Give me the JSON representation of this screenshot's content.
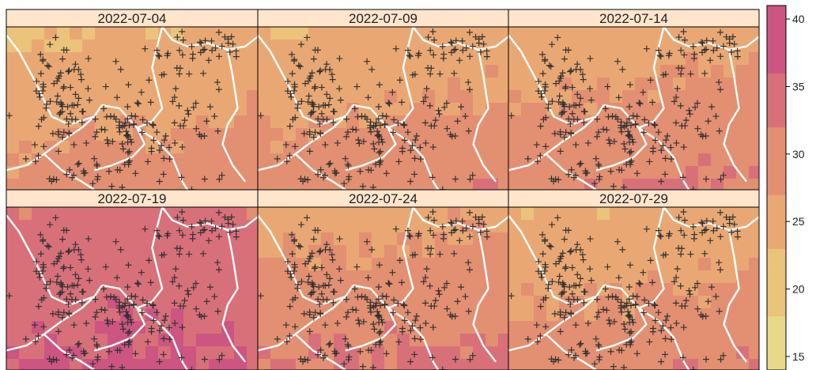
{
  "chart_data": {
    "type": "heatmap",
    "description_panels": "six map panels (gridded raster with station crosses and boundary lines)",
    "panels": [
      {
        "label": "2022-07-04"
      },
      {
        "label": "2022-07-09"
      },
      {
        "label": "2022-07-14"
      },
      {
        "label": "2022-07-19"
      },
      {
        "label": "2022-07-24"
      },
      {
        "label": "2022-07-29"
      }
    ],
    "colorbar": {
      "ticks": [
        40,
        35,
        30,
        25,
        20,
        15
      ],
      "range": [
        14,
        41
      ]
    },
    "panel_mean_values": [
      26,
      27,
      28,
      35,
      29,
      27
    ]
  },
  "colors": {
    "strip_bg": "#ffe5cc",
    "palette": [
      "#e8d88a",
      "#ebc37a",
      "#e9a873",
      "#e38f72",
      "#d8707a",
      "#cc5582"
    ],
    "marker": "#333333",
    "boundary": "#ffffff"
  }
}
